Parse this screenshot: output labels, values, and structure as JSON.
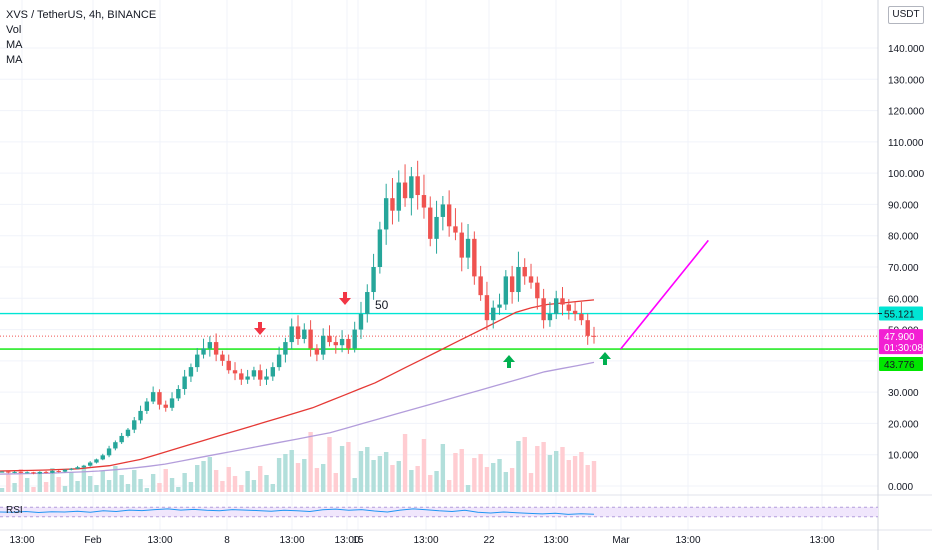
{
  "legend": {
    "title": "XVS / TetherUS, 4h, BINANCE",
    "vol": "Vol",
    "ma1": "MA",
    "ma2": "MA"
  },
  "currency_button": "USDT",
  "rsi_label": "RSI",
  "annotation_50": "50",
  "colors": {
    "up": "#26a69a",
    "down": "#ef5350",
    "ma_red": "#e53935",
    "ma_purple": "#b39ddb",
    "cyan_line": "#00e5d4",
    "green_line": "#00e600",
    "magenta_line": "#ff00ff",
    "arrow_red": "#f23645",
    "arrow_green": "#00b050",
    "price_tag": "#f21fd3",
    "rsi_line": "#2196f3",
    "rsi_band": "#f0e6fc"
  },
  "chart_data": {
    "type": "candlestick",
    "yaxis": {
      "min": 0,
      "max": 150,
      "ticks": [
        "0.000",
        "10.000",
        "20.000",
        "30.000",
        "40.000",
        "50.000",
        "60.000",
        "70.000",
        "80.000",
        "90.000",
        "100.000",
        "110.000",
        "120.000",
        "130.000",
        "140.000"
      ],
      "tick_values": [
        0,
        10,
        20,
        30,
        40,
        50,
        60,
        70,
        80,
        90,
        100,
        110,
        120,
        130,
        140
      ]
    },
    "xaxis": {
      "labels": [
        "13:00",
        "Feb",
        "13:00",
        "8",
        "13:00",
        "13:00",
        "15",
        "13:00",
        "22",
        "13:00",
        "Mar",
        "13:00",
        "13:00"
      ]
    },
    "horizontal_lines": [
      {
        "value": 55.121,
        "label": "55.121",
        "color": "#00e5d4"
      },
      {
        "value": 43.776,
        "label": "43.776",
        "color": "#00e600"
      }
    ],
    "current_price": {
      "value": 47.9,
      "label": "47.900",
      "countdown": "01:30:08"
    },
    "partial_tick": "50.000",
    "trend_line": {
      "from": [
        0.666,
        43.776
      ],
      "to": [
        0.76,
        78.5
      ]
    },
    "close_series": [
      4.6,
      4.3,
      4.5,
      4.2,
      4.4,
      4.0,
      4.5,
      4.2,
      4.8,
      4.6,
      5.2,
      5.5,
      6.0,
      6.5,
      7.5,
      8.5,
      9.8,
      12,
      14,
      16,
      18,
      21,
      24,
      27,
      30,
      26,
      25,
      28,
      31,
      35,
      38,
      42,
      44,
      46,
      42,
      40,
      37,
      36,
      34,
      35,
      37,
      34,
      35,
      38,
      42,
      46,
      51,
      47,
      50,
      44,
      42,
      48,
      46,
      45,
      47,
      44,
      50,
      55,
      62,
      70,
      82,
      92,
      88,
      97,
      92,
      99,
      93,
      89,
      79,
      86,
      90,
      83,
      81,
      73,
      79,
      67,
      61,
      53,
      57,
      58,
      67,
      62,
      70,
      67,
      65,
      60,
      53,
      55,
      60,
      58,
      56,
      55,
      53,
      48,
      47.9
    ],
    "ma_red": [
      4.8,
      4.9,
      5.0,
      5.1,
      5.3,
      5.5,
      6.0,
      6.5,
      7.5,
      8.5,
      10,
      11.5,
      13,
      14.5,
      16,
      17.5,
      19,
      20.5,
      22,
      23.5,
      25,
      27,
      29,
      31,
      33,
      35.5,
      38,
      40.5,
      43,
      45.5,
      48,
      50.5,
      53,
      55.5,
      57,
      58,
      58.5,
      59,
      59.5
    ],
    "ma_purple": [
      3.8,
      3.9,
      4.0,
      4.1,
      4.3,
      4.5,
      4.8,
      5.2,
      5.7,
      6.3,
      7,
      8,
      9,
      10,
      11,
      12,
      13,
      14,
      15,
      16,
      17,
      18.5,
      20,
      21.5,
      23,
      24.5,
      26,
      27.5,
      29,
      30.5,
      32,
      33.5,
      35,
      36.5,
      37.5,
      38.5,
      39.5
    ],
    "rsi": [
      50,
      49,
      52,
      48,
      51,
      50,
      53,
      49,
      55,
      52,
      58,
      56,
      60,
      63,
      58,
      61,
      57,
      55,
      60,
      58,
      56,
      53,
      57,
      55,
      52,
      59,
      62,
      57,
      60,
      54,
      50,
      58,
      63,
      59,
      55,
      52,
      57,
      49,
      46,
      50,
      47,
      44,
      42,
      45,
      40,
      43,
      41
    ]
  }
}
